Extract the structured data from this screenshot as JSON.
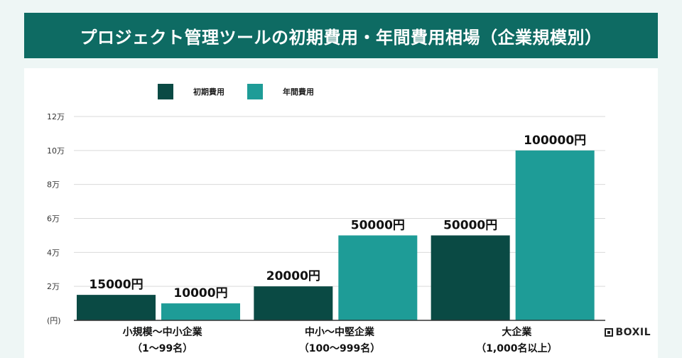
{
  "title": "プロジェクト管理ツールの初期費用・年間費用相場（企業規模別）",
  "colors": {
    "initial": "#0a4a44",
    "annual": "#1e9c97",
    "grid": "#d9d9d9",
    "header": "#0e6b63"
  },
  "brand": {
    "name": "BOXIL",
    "icon": "boxil-logo-icon"
  },
  "chart_data": {
    "type": "bar",
    "title": "プロジェクト管理ツールの初期費用・年間費用相場（企業規模別）",
    "categories": [
      {
        "line1": "小規模〜中小企業",
        "line2": "（1〜99名）"
      },
      {
        "line1": "中小〜中堅企業",
        "line2": "（100〜999名）"
      },
      {
        "line1": "大企業",
        "line2": "（1,000名以上）"
      }
    ],
    "series": [
      {
        "name": "初期費用",
        "values": [
          15000,
          20000,
          50000
        ],
        "labels": [
          "15000円",
          "20000円",
          "50000円"
        ]
      },
      {
        "name": "年間費用",
        "values": [
          10000,
          50000,
          100000
        ],
        "labels": [
          "10000円",
          "50000円",
          "100000円"
        ]
      }
    ],
    "ylim": [
      0,
      120000
    ],
    "yticks": [
      {
        "value": 0,
        "label": "(円)"
      },
      {
        "value": 20000,
        "label": "2万"
      },
      {
        "value": 40000,
        "label": "4万"
      },
      {
        "value": 60000,
        "label": "6万"
      },
      {
        "value": 80000,
        "label": "8万"
      },
      {
        "value": 100000,
        "label": "10万"
      },
      {
        "value": 120000,
        "label": "12万"
      }
    ],
    "grid": true,
    "legend_position": "top-left"
  }
}
